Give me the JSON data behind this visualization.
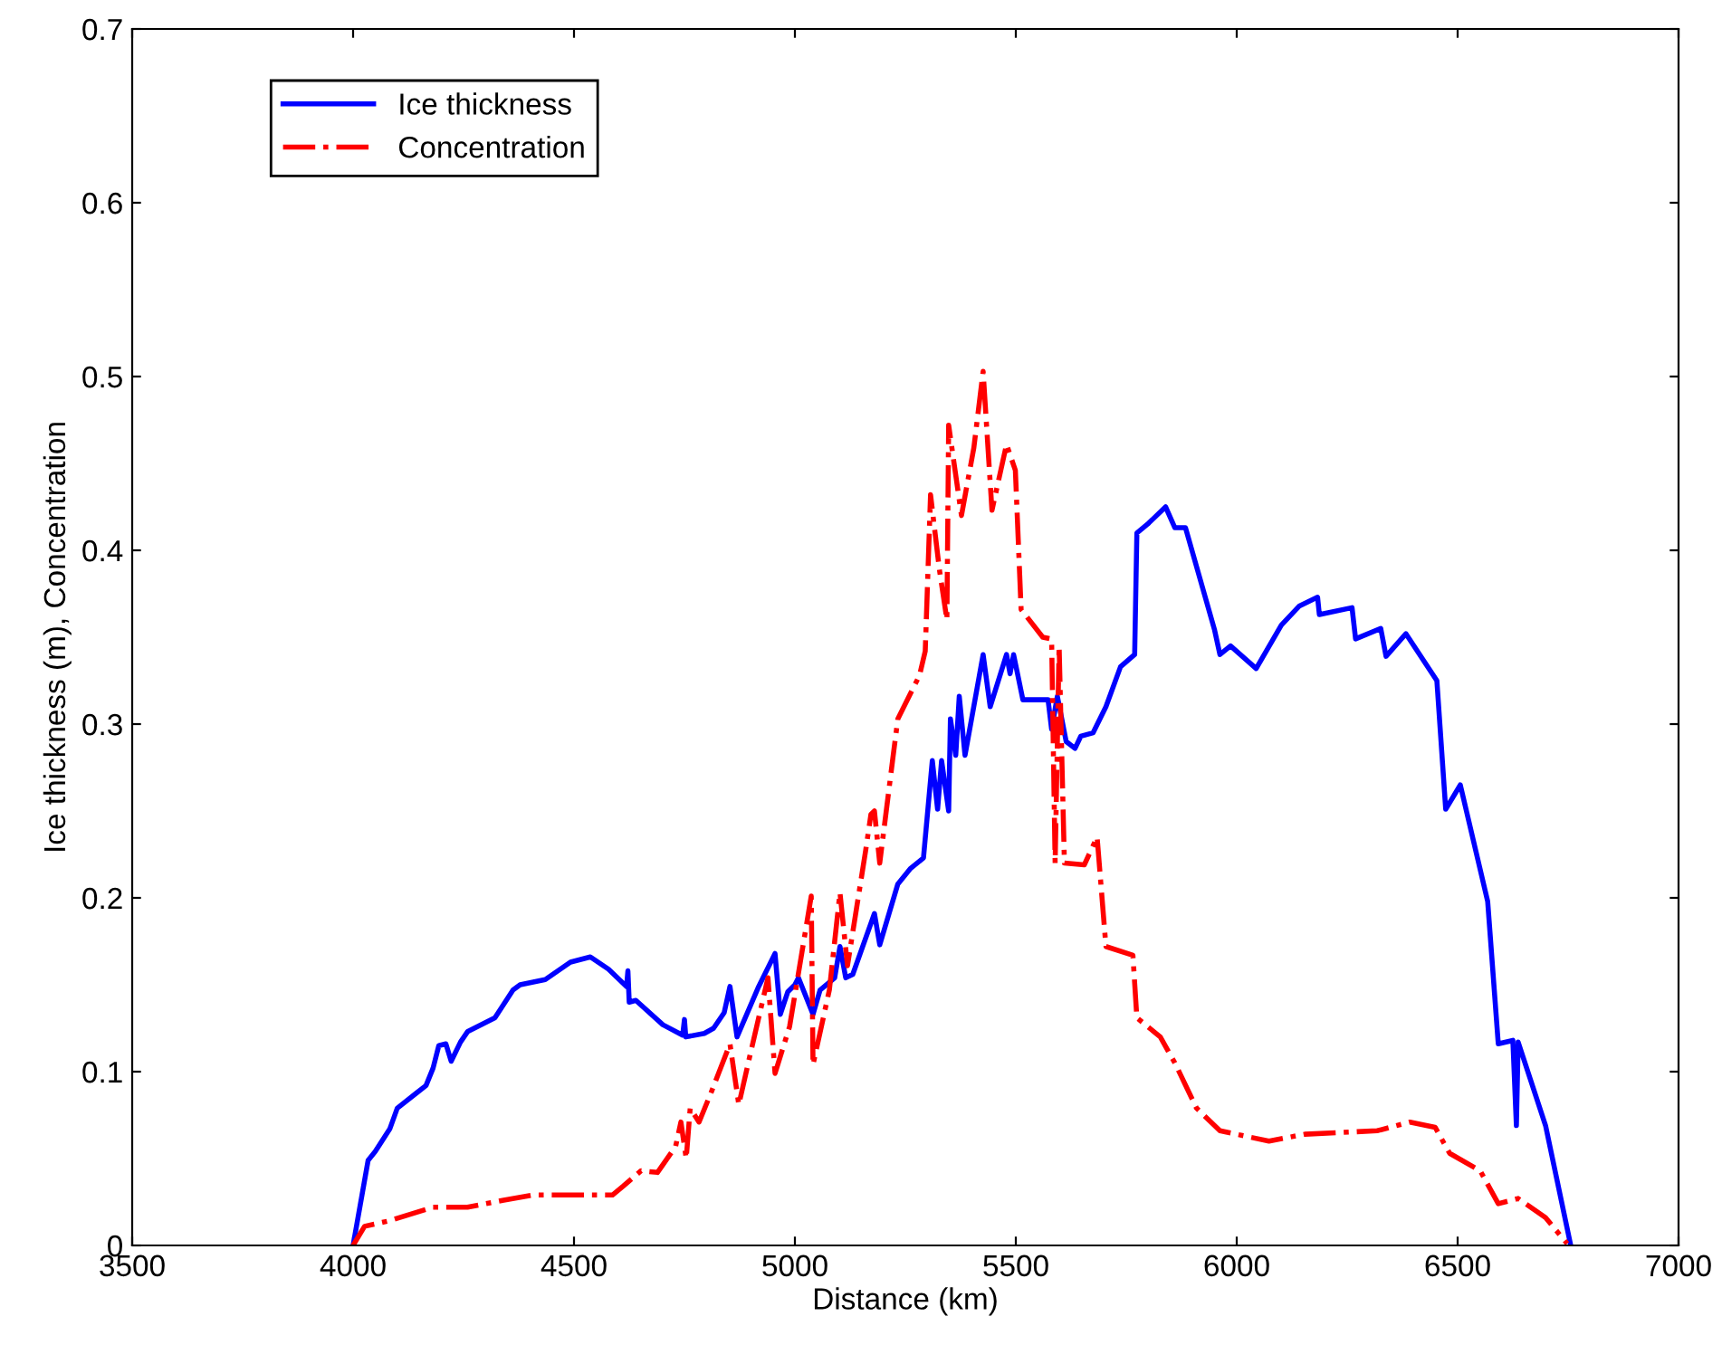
{
  "chart_data": {
    "type": "line",
    "xlabel": "Distance (km)",
    "ylabel": "Ice thickness (m), Concentration",
    "xlim": [
      3500,
      7000
    ],
    "xticks": [
      3500,
      4000,
      4500,
      5000,
      5500,
      6000,
      6500,
      7000
    ],
    "ylim": [
      0,
      0.7
    ],
    "yticks": [
      0,
      0.1,
      0.2,
      0.3,
      0.4,
      0.5,
      0.6,
      0.7
    ],
    "grid": false,
    "legend": "top left",
    "series": [
      {
        "name": "Ice thickness",
        "color": "#0000ff",
        "line_style": "solid",
        "x": [
          4000,
          4034,
          4050,
          4083,
          4100,
          4145,
          4165,
          4181,
          4194,
          4210,
          4222,
          4243,
          4259,
          4321,
          4362,
          4378,
          4435,
          4492,
          4537,
          4578,
          4619,
          4622,
          4625,
          4640,
          4701,
          4746,
          4750,
          4753,
          4795,
          4816,
          4840,
          4853,
          4869,
          4918,
          4955,
          4967,
          4984,
          5000,
          5008,
          5041,
          5057,
          5090,
          5102,
          5115,
          5131,
          5180,
          5192,
          5233,
          5262,
          5291,
          5311,
          5323,
          5332,
          5348,
          5352,
          5364,
          5372,
          5385,
          5426,
          5442,
          5479,
          5487,
          5495,
          5516,
          5573,
          5581,
          5594,
          5614,
          5634,
          5647,
          5675,
          5704,
          5737,
          5769,
          5774,
          5798,
          5839,
          5860,
          5884,
          5950,
          5962,
          5986,
          6044,
          6101,
          6142,
          6183,
          6187,
          6261,
          6269,
          6326,
          6338,
          6383,
          6453,
          6473,
          6506,
          6568,
          6592,
          6625,
          6633,
          6637,
          6699,
          6756
        ],
        "values": [
          0,
          0.049,
          0.054,
          0.067,
          0.079,
          0.088,
          0.092,
          0.102,
          0.115,
          0.116,
          0.106,
          0.117,
          0.123,
          0.131,
          0.147,
          0.15,
          0.153,
          0.163,
          0.166,
          0.159,
          0.149,
          0.158,
          0.14,
          0.141,
          0.127,
          0.121,
          0.13,
          0.12,
          0.122,
          0.125,
          0.134,
          0.149,
          0.12,
          0.149,
          0.168,
          0.133,
          0.146,
          0.15,
          0.154,
          0.133,
          0.147,
          0.154,
          0.172,
          0.154,
          0.156,
          0.191,
          0.173,
          0.208,
          0.217,
          0.223,
          0.279,
          0.251,
          0.279,
          0.25,
          0.303,
          0.282,
          0.316,
          0.282,
          0.34,
          0.31,
          0.34,
          0.329,
          0.34,
          0.314,
          0.314,
          0.297,
          0.316,
          0.29,
          0.286,
          0.293,
          0.295,
          0.31,
          0.333,
          0.34,
          0.41,
          0.415,
          0.425,
          0.413,
          0.413,
          0.354,
          0.34,
          0.345,
          0.332,
          0.357,
          0.368,
          0.373,
          0.363,
          0.367,
          0.349,
          0.355,
          0.339,
          0.352,
          0.325,
          0.251,
          0.265,
          0.198,
          0.116,
          0.118,
          0.069,
          0.117,
          0.069,
          0
        ]
      },
      {
        "name": "Concentration",
        "color": "#ff0000",
        "line_style": "dashdot",
        "x": [
          4000,
          4026,
          4079,
          4181,
          4259,
          4341,
          4407,
          4587,
          4611,
          4652,
          4689,
          4730,
          4742,
          4754,
          4763,
          4783,
          4812,
          4853,
          4873,
          4898,
          4939,
          4955,
          4988,
          5037,
          5041,
          5078,
          5102,
          5119,
          5160,
          5172,
          5180,
          5192,
          5221,
          5233,
          5282,
          5295,
          5307,
          5327,
          5344,
          5348,
          5377,
          5405,
          5426,
          5446,
          5479,
          5499,
          5512,
          5561,
          5581,
          5589,
          5598,
          5610,
          5655,
          5684,
          5704,
          5765,
          5774,
          5827,
          5860,
          5909,
          5962,
          6073,
          6154,
          6318,
          6392,
          6449,
          6482,
          6551,
          6592,
          6637,
          6699,
          6748
        ],
        "values": [
          0,
          0.011,
          0.014,
          0.022,
          0.022,
          0.026,
          0.029,
          0.029,
          0.034,
          0.043,
          0.042,
          0.057,
          0.071,
          0.05,
          0.079,
          0.071,
          0.089,
          0.116,
          0.081,
          0.109,
          0.154,
          0.099,
          0.126,
          0.201,
          0.104,
          0.147,
          0.203,
          0.161,
          0.227,
          0.248,
          0.25,
          0.22,
          0.279,
          0.303,
          0.328,
          0.342,
          0.432,
          0.389,
          0.36,
          0.472,
          0.42,
          0.459,
          0.503,
          0.423,
          0.461,
          0.446,
          0.366,
          0.35,
          0.349,
          0.22,
          0.345,
          0.22,
          0.219,
          0.235,
          0.172,
          0.167,
          0.131,
          0.12,
          0.105,
          0.079,
          0.066,
          0.06,
          0.064,
          0.066,
          0.071,
          0.068,
          0.053,
          0.043,
          0.024,
          0.027,
          0.016,
          0.001
        ]
      }
    ]
  }
}
